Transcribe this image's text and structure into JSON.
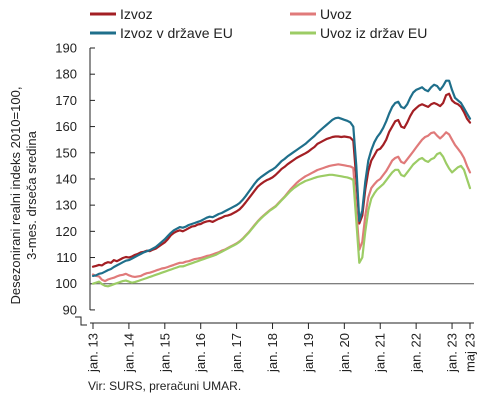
{
  "chart_data": {
    "type": "line",
    "ylabel_lines": [
      "Desezonirani realni indeks 2010=100,",
      "3-mes. drseča sredina"
    ],
    "xlabel": "",
    "ylim": [
      85,
      190
    ],
    "y_ticks": [
      90,
      100,
      110,
      120,
      130,
      140,
      150,
      160,
      170,
      180,
      190
    ],
    "reference_line": 100,
    "y_axis_break": true,
    "grid": false,
    "legend_position": "top",
    "x_tick_labels": [
      "jan. 13",
      "jan. 14",
      "jan. 15",
      "jan. 16",
      "jan. 17",
      "jan. 18",
      "jan. 19",
      "jan. 20",
      "jan. 21",
      "jan. 22",
      "jan. 23",
      "maj 23"
    ],
    "x_start": "jan. 13",
    "x_frequency": "monthly",
    "series": [
      {
        "name": "Izvoz",
        "color": "#a31f24",
        "values": [
          106.5,
          106.8,
          107.2,
          107.0,
          107.8,
          108.2,
          108.0,
          109.0,
          108.6,
          109.2,
          109.8,
          110.2,
          110.0,
          110.4,
          111.0,
          111.4,
          112.0,
          112.2,
          112.6,
          112.4,
          113.0,
          113.4,
          114.2,
          115.0,
          115.8,
          117.0,
          118.5,
          119.4,
          120.0,
          120.4,
          120.0,
          120.6,
          121.2,
          121.8,
          122.0,
          122.6,
          122.8,
          123.4,
          123.8,
          124.0,
          123.6,
          124.2,
          124.8,
          125.2,
          125.8,
          126.0,
          126.4,
          127.0,
          127.6,
          128.4,
          129.6,
          131.0,
          132.5,
          134.0,
          135.5,
          137.0,
          138.0,
          138.8,
          139.5,
          140.0,
          140.6,
          141.5,
          142.6,
          143.8,
          144.6,
          145.6,
          146.4,
          147.2,
          148.0,
          148.6,
          149.2,
          149.8,
          150.5,
          151.4,
          152.2,
          153.4,
          154.0,
          154.6,
          155.2,
          155.6,
          156.0,
          156.2,
          156.2,
          156.0,
          156.2,
          156.0,
          155.8,
          154.6,
          140.0,
          123.0,
          126.0,
          136.0,
          143.0,
          147.0,
          149.0,
          151.0,
          151.5,
          153.0,
          155.0,
          158.0,
          160.0,
          162.0,
          162.5,
          160.0,
          159.5,
          161.5,
          164.0,
          166.0,
          167.0,
          168.0,
          168.5,
          168.0,
          167.5,
          168.5,
          169.0,
          168.5,
          167.8,
          169.0,
          172.0,
          172.5,
          170.0,
          169.0,
          168.5,
          167.5,
          165.5,
          163.0,
          161.5
        ]
      },
      {
        "name": "Uvoz",
        "color": "#e07a7a",
        "values": [
          103.5,
          103.0,
          102.8,
          101.5,
          101.0,
          101.6,
          102.0,
          102.3,
          102.8,
          103.2,
          103.4,
          103.8,
          103.2,
          102.8,
          102.6,
          102.8,
          103.0,
          103.6,
          104.0,
          104.2,
          104.6,
          105.0,
          105.4,
          105.8,
          106.0,
          106.4,
          106.8,
          107.2,
          107.6,
          108.0,
          108.0,
          108.4,
          108.6,
          109.0,
          109.4,
          109.6,
          109.8,
          110.2,
          110.6,
          110.8,
          111.2,
          111.6,
          112.0,
          112.6,
          113.0,
          113.6,
          114.2,
          114.8,
          115.4,
          116.2,
          117.2,
          118.4,
          119.6,
          121.0,
          122.4,
          123.8,
          125.0,
          126.0,
          127.0,
          128.0,
          128.8,
          129.6,
          130.8,
          132.0,
          133.2,
          134.6,
          136.0,
          137.2,
          138.4,
          139.4,
          140.2,
          141.0,
          141.6,
          142.2,
          142.8,
          143.4,
          143.8,
          144.2,
          144.6,
          145.0,
          145.2,
          145.4,
          145.6,
          145.4,
          145.2,
          145.0,
          144.8,
          144.2,
          128.0,
          113.0,
          116.0,
          126.0,
          133.0,
          136.5,
          138.0,
          139.2,
          140.0,
          141.5,
          143.0,
          145.0,
          147.0,
          148.0,
          148.5,
          146.5,
          146.0,
          147.5,
          149.0,
          150.5,
          152.0,
          153.5,
          155.0,
          156.0,
          156.5,
          157.5,
          157.8,
          156.5,
          155.5,
          156.5,
          157.8,
          157.0,
          155.0,
          153.0,
          151.5,
          150.0,
          148.0,
          145.0,
          142.5
        ]
      },
      {
        "name": "Izvoz v države EU",
        "color": "#1f6f8b",
        "values": [
          103.0,
          103.2,
          103.8,
          104.0,
          104.6,
          105.2,
          105.6,
          106.4,
          107.0,
          107.6,
          108.2,
          108.8,
          109.0,
          109.6,
          110.2,
          110.8,
          111.4,
          112.0,
          112.4,
          112.8,
          113.4,
          114.0,
          115.0,
          116.0,
          117.0,
          118.2,
          119.4,
          120.4,
          121.0,
          121.6,
          121.4,
          121.8,
          122.4,
          122.8,
          123.2,
          123.6,
          124.0,
          124.6,
          125.2,
          125.6,
          125.4,
          126.0,
          126.6,
          127.0,
          127.6,
          128.2,
          128.8,
          129.4,
          130.0,
          130.8,
          132.0,
          133.4,
          135.0,
          136.6,
          138.2,
          139.6,
          140.6,
          141.4,
          142.2,
          143.0,
          143.6,
          144.4,
          145.6,
          146.8,
          147.6,
          148.6,
          149.4,
          150.2,
          151.0,
          151.8,
          152.6,
          153.4,
          154.4,
          155.4,
          156.4,
          157.6,
          158.6,
          159.6,
          160.6,
          161.6,
          162.6,
          163.2,
          163.4,
          163.0,
          162.6,
          162.2,
          161.6,
          160.0,
          145.0,
          124.0,
          128.0,
          139.0,
          147.0,
          151.0,
          154.0,
          156.0,
          157.5,
          159.5,
          162.0,
          165.0,
          167.5,
          169.0,
          169.5,
          167.5,
          167.0,
          168.5,
          171.0,
          173.0,
          174.0,
          174.5,
          175.0,
          174.0,
          173.5,
          175.0,
          176.0,
          175.5,
          174.0,
          175.5,
          177.5,
          177.5,
          174.0,
          171.0,
          170.0,
          169.0,
          167.0,
          165.0,
          163.0
        ]
      },
      {
        "name": "Uvoz iz držav EU",
        "color": "#9ccc65",
        "values": [
          100.0,
          100.4,
          100.8,
          99.8,
          99.2,
          99.0,
          99.4,
          99.8,
          100.2,
          100.6,
          101.0,
          101.2,
          100.8,
          100.4,
          100.6,
          101.0,
          101.4,
          101.8,
          102.2,
          102.6,
          103.0,
          103.4,
          103.8,
          104.2,
          104.6,
          105.0,
          105.4,
          105.8,
          106.2,
          106.6,
          106.6,
          107.0,
          107.4,
          107.8,
          108.2,
          108.6,
          109.0,
          109.4,
          109.8,
          110.2,
          110.6,
          111.0,
          111.6,
          112.2,
          112.8,
          113.4,
          114.0,
          114.6,
          115.2,
          116.0,
          117.0,
          118.2,
          119.4,
          120.8,
          122.2,
          123.6,
          124.8,
          125.8,
          126.8,
          127.8,
          128.6,
          129.4,
          130.6,
          131.8,
          133.0,
          134.2,
          135.4,
          136.4,
          137.2,
          138.0,
          138.6,
          139.2,
          139.6,
          140.0,
          140.4,
          140.8,
          141.0,
          141.2,
          141.4,
          141.6,
          141.6,
          141.4,
          141.2,
          141.0,
          140.8,
          140.6,
          140.2,
          139.6,
          124.0,
          108.0,
          110.0,
          120.0,
          128.0,
          132.5,
          134.5,
          136.0,
          137.0,
          138.0,
          139.5,
          141.0,
          142.5,
          143.5,
          143.5,
          141.5,
          141.0,
          142.5,
          144.0,
          145.5,
          146.5,
          147.5,
          148.0,
          147.0,
          146.5,
          147.5,
          148.0,
          149.5,
          150.0,
          148.5,
          146.0,
          144.0,
          142.5,
          143.5,
          144.5,
          145.0,
          143.5,
          140.0,
          136.5
        ]
      }
    ]
  },
  "source_text": "Vir: SURS, preračuni UMAR."
}
